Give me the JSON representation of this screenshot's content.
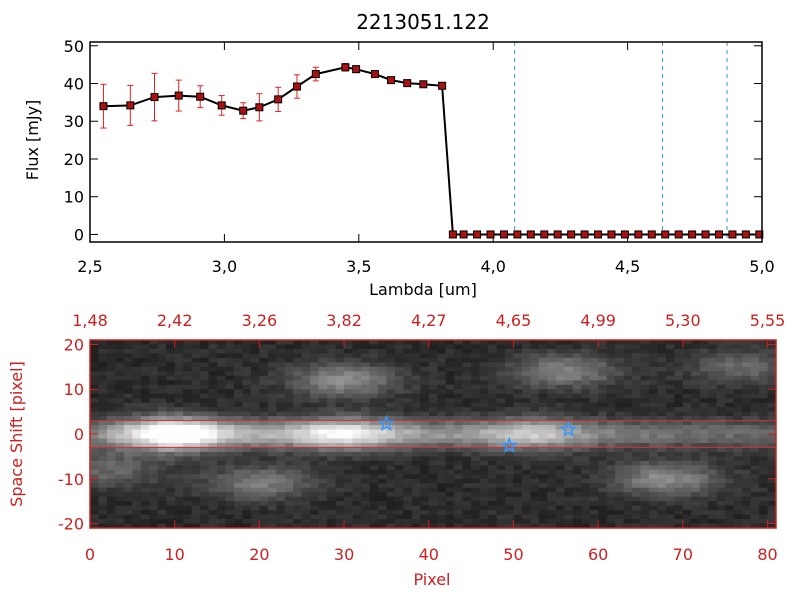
{
  "chart_data": [
    {
      "type": "line",
      "title": "2213051.122",
      "xlabel": "Lambda [um]",
      "ylabel": "Flux [mJy]",
      "xlim": [
        2.5,
        5.0
      ],
      "ylim": [
        -2,
        51
      ],
      "xticks": [
        "2.5",
        "3.0",
        "3.5",
        "4.0",
        "4.5",
        "5.0"
      ],
      "yticks": [
        "0",
        "10",
        "20",
        "30",
        "40",
        "50"
      ],
      "x": [
        2.55,
        2.65,
        2.74,
        2.83,
        2.91,
        2.99,
        3.07,
        3.13,
        3.2,
        3.27,
        3.34,
        3.45,
        3.49,
        3.56,
        3.62,
        3.68,
        3.74,
        3.81,
        3.85,
        3.89,
        3.94,
        3.99,
        4.04,
        4.09,
        4.14,
        4.19,
        4.24,
        4.29,
        4.34,
        4.39,
        4.44,
        4.49,
        4.54,
        4.59,
        4.64,
        4.69,
        4.74,
        4.79,
        4.84,
        4.89,
        4.94,
        4.99
      ],
      "series": [
        {
          "values": [
            34,
            34.2,
            36.4,
            36.8,
            36.5,
            34.2,
            32.8,
            33.7,
            35.8,
            39.2,
            42.5,
            44.3,
            43.8,
            42.5,
            40.9,
            40.1,
            39.8,
            39.4,
            0,
            0,
            0,
            0,
            0,
            0,
            0,
            0,
            0,
            0,
            0,
            0,
            0,
            0,
            0,
            0,
            0,
            0,
            0,
            0,
            0,
            0,
            0,
            0
          ],
          "errors": [
            5.8,
            5.3,
            6.3,
            4.1,
            2.9,
            2.6,
            2.1,
            3.6,
            3.2,
            3.1,
            1.8,
            1.0,
            0.9,
            0.6,
            0.6,
            0.6,
            0.6,
            0.8,
            0,
            0,
            0,
            0,
            0,
            0,
            0,
            0,
            0,
            0,
            0,
            0,
            0,
            0,
            0,
            0,
            0,
            0,
            0,
            0,
            0,
            0,
            0,
            0
          ],
          "color": "#000000",
          "marker_color": "#aa1111",
          "error_color": "#dd2222"
        }
      ],
      "vlines": [
        4.08,
        4.63,
        4.87
      ],
      "vline_color": "#3399cc",
      "grid": false
    },
    {
      "type": "heatmap",
      "xlabel": "Pixel",
      "ylabel": "Space Shift [pixel]",
      "xlim": [
        0,
        81
      ],
      "ylim": [
        -21,
        21
      ],
      "xticks": [
        "0",
        "10",
        "20",
        "30",
        "40",
        "50",
        "60",
        "70",
        "80"
      ],
      "yticks": [
        "-20",
        "-10",
        "0",
        "10",
        "20"
      ],
      "top_axis_ticks": [
        "1.48",
        "2.42",
        "3.26",
        "3.82",
        "4.27",
        "4.65",
        "4.99",
        "5.30",
        "5.55"
      ],
      "colormap": "grayscale",
      "bright_sources": [
        {
          "pixel": 9,
          "shift": 0,
          "level": 1.0
        },
        {
          "pixel": 30,
          "shift": 0,
          "level": 0.6
        },
        {
          "pixel": 52,
          "shift": 0,
          "level": 0.45
        },
        {
          "pixel": 30,
          "shift": 12,
          "level": 0.55
        },
        {
          "pixel": 56,
          "shift": 14,
          "level": 0.5
        },
        {
          "pixel": 77,
          "shift": 15,
          "level": 0.35
        },
        {
          "pixel": 20,
          "shift": -11,
          "level": 0.45
        },
        {
          "pixel": 68,
          "shift": -10,
          "level": 0.55
        },
        {
          "pixel": 2,
          "shift": -8,
          "level": 0.35
        }
      ],
      "trace_lines_shift": [
        3,
        -3
      ],
      "trace_line_color": "#cc3333",
      "markers": [
        {
          "pixel": 35,
          "shift": 2.3
        },
        {
          "pixel": 49.5,
          "shift": -2.6
        },
        {
          "pixel": 56.5,
          "shift": 1.0
        }
      ],
      "marker_color": "#3399ff",
      "axis_color": "#cc2020"
    }
  ]
}
